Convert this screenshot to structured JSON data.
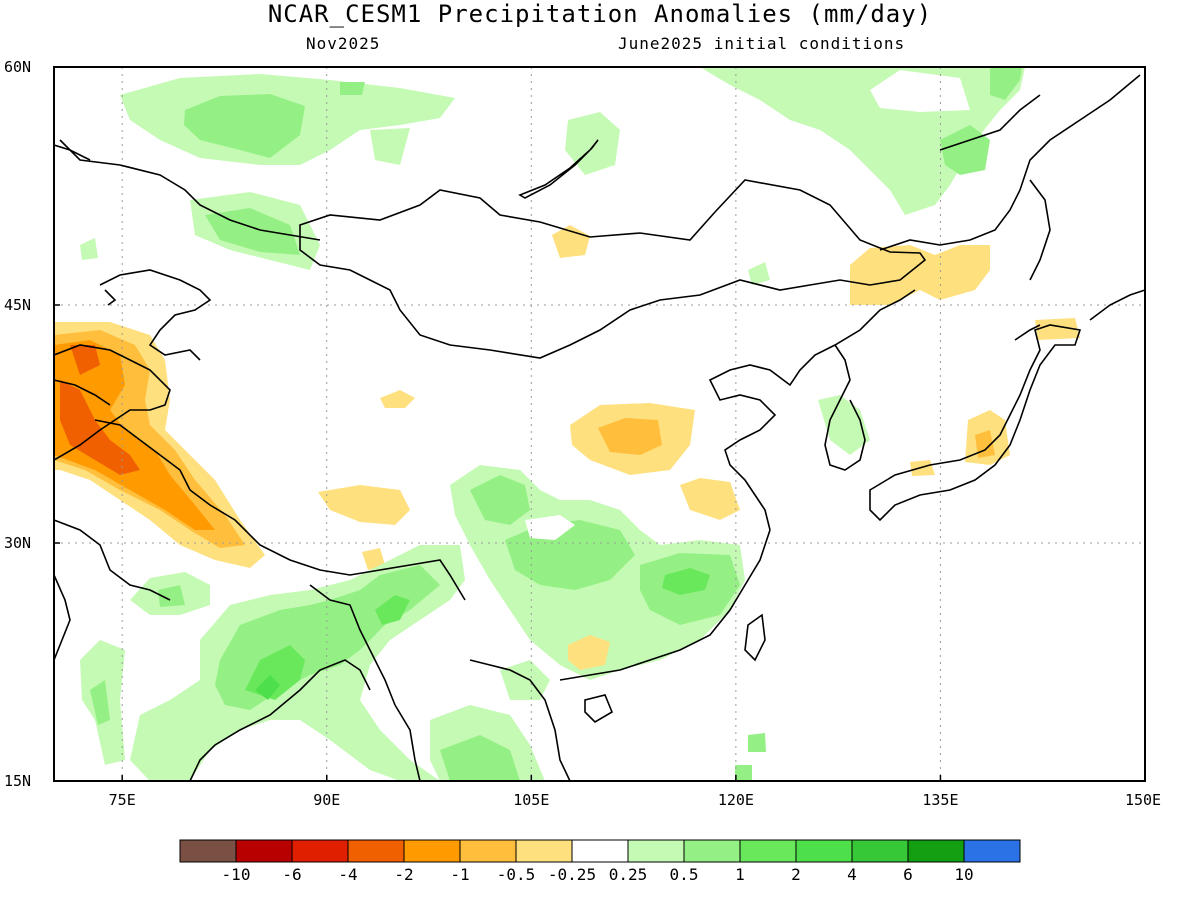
{
  "header": {
    "title": "NCAR_CESM1 Precipitation Anomalies (mm/day)",
    "month": "Nov2025",
    "init": "June2025 initial conditions"
  },
  "map": {
    "lon_range": [
      70,
      150
    ],
    "lat_range": [
      15,
      60
    ],
    "lat_labels": [
      "60N",
      "45N",
      "30N",
      "15N"
    ],
    "lon_labels": [
      "75E",
      "90E",
      "105E",
      "120E",
      "135E",
      "150E"
    ],
    "gridlines": true
  },
  "colorbar": {
    "colors": [
      "#7a5044",
      "#b80000",
      "#e01e00",
      "#f06000",
      "#ff9a00",
      "#ffbe3c",
      "#ffe07e",
      "#ffffff",
      "#c4fab4",
      "#94f084",
      "#6ae85c",
      "#4ee04a",
      "#36c836",
      "#12a012",
      "#2a72e6"
    ],
    "labels": [
      "-10",
      "-6",
      "-4",
      "-2",
      "-1",
      "-0.5",
      "-0.25",
      "0.25",
      "0.5",
      "1",
      "2",
      "4",
      "6",
      "10"
    ]
  }
}
